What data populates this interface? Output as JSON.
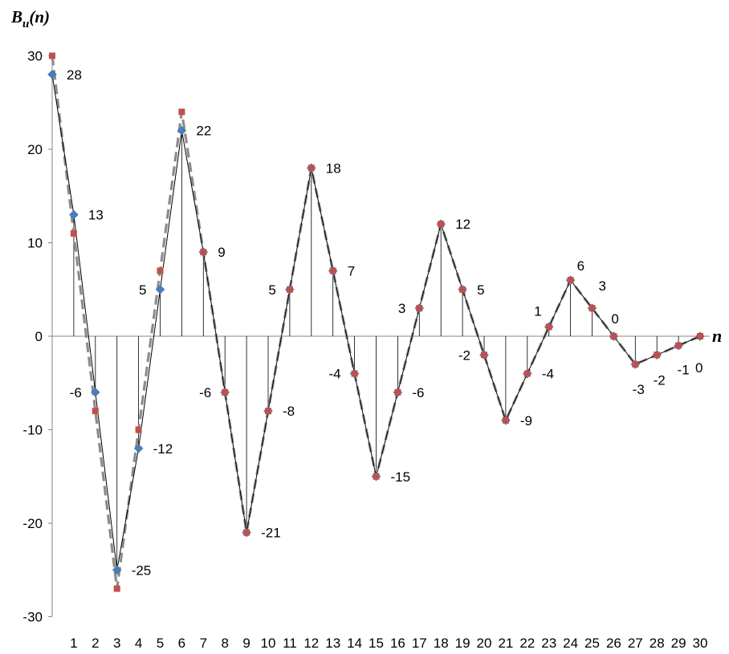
{
  "chart_data": {
    "type": "line",
    "ylabel_main": "B",
    "ylabel_sub": "u",
    "ylabel_tail": "(n)",
    "xlabel": "n",
    "ylim": [
      -30,
      30
    ],
    "yticks": [
      -30,
      -20,
      -10,
      0,
      10,
      20,
      30
    ],
    "x": [
      0,
      1,
      2,
      3,
      4,
      5,
      6,
      7,
      8,
      9,
      10,
      11,
      12,
      13,
      14,
      15,
      16,
      17,
      18,
      19,
      20,
      21,
      22,
      23,
      24,
      25,
      26,
      27,
      28,
      29,
      30
    ],
    "xtick_labels": [
      "1",
      "2",
      "3",
      "4",
      "5",
      "6",
      "7",
      "8",
      "9",
      "10",
      "11",
      "12",
      "13",
      "14",
      "15",
      "16",
      "17",
      "18",
      "19",
      "20",
      "21",
      "22",
      "23",
      "24",
      "25",
      "26",
      "27",
      "28",
      "29",
      "30"
    ],
    "series": [
      {
        "marker": "diamond",
        "color": "#4a7ebb",
        "line_style": "solid",
        "values": [
          28,
          13,
          -6,
          -25,
          -12,
          5,
          22,
          9,
          -6,
          -21,
          -8,
          5,
          18,
          7,
          -4,
          -15,
          -6,
          3,
          12,
          5,
          -2,
          -9,
          -4,
          1,
          6,
          3,
          0,
          -3,
          -2,
          -1,
          0
        ]
      },
      {
        "marker": "square",
        "color": "#c0504d",
        "line_style": "dashed",
        "values": [
          30,
          11,
          -8,
          -27,
          -10,
          7,
          24,
          9,
          -6,
          -21,
          -8,
          5,
          18,
          7,
          -4,
          -15,
          -6,
          3,
          12,
          5,
          -2,
          -9,
          -4,
          1,
          6,
          3,
          0,
          -3,
          -2,
          -1,
          0
        ]
      }
    ],
    "data_labels": [
      "28",
      "13",
      "-6",
      "-25",
      "-12",
      "5",
      "22",
      "9",
      "-6",
      "-21",
      "-8",
      "5",
      "18",
      "7",
      "-4",
      "-15",
      "-6",
      "3",
      "12",
      "5",
      "-2",
      "-9",
      "-4",
      "1",
      "6",
      "3",
      "0",
      "-3",
      "-2",
      "-1",
      "0"
    ],
    "grid": false
  }
}
